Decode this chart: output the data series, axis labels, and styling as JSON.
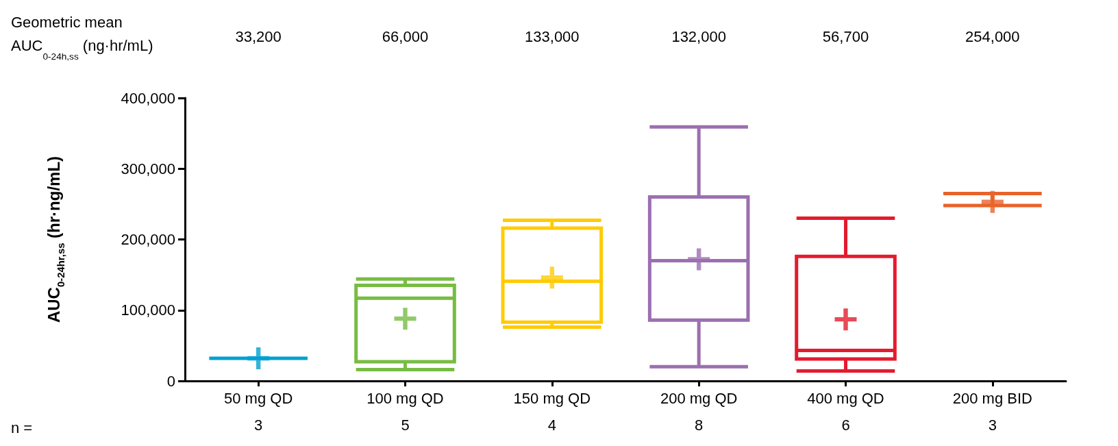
{
  "chart_data": {
    "type": "box",
    "ylabel": "AUC$_{0-24hr,ss}$ (hr·ng/mL)",
    "categories": [
      "50 mg QD",
      "100 mg QD",
      "150 mg QD",
      "200 mg QD",
      "400 mg QD",
      "200 mg BID"
    ],
    "colors": [
      "#00a0d2",
      "#77bc43",
      "#ffcb05",
      "#9b6fb0",
      "#e31b2e",
      "#e8632a"
    ],
    "boxes": [
      {
        "low": 32000,
        "q1": 32000,
        "median": 32000,
        "q3": 32000,
        "high": 32000,
        "mean": 32000
      },
      {
        "low": 16000,
        "q1": 27000,
        "median": 117000,
        "q3": 135000,
        "high": 144000,
        "mean": 88000
      },
      {
        "low": 76000,
        "q1": 83000,
        "median": 141000,
        "q3": 216000,
        "high": 227000,
        "mean": 146000
      },
      {
        "low": 20000,
        "q1": 86000,
        "median": 170000,
        "q3": 260000,
        "high": 359000,
        "mean": 172000
      },
      {
        "low": 14000,
        "q1": 31000,
        "median": 43000,
        "q3": 176000,
        "high": 230000,
        "mean": 87000
      },
      {
        "low": 248000,
        "q1": 248000,
        "median": 248000,
        "q3": 248000,
        "high": 265000,
        "mean": 253000
      }
    ],
    "ylim": [
      0,
      400000
    ],
    "yticks": [
      {
        "value": 0,
        "label": "0"
      },
      {
        "value": 100000,
        "label": "100,000"
      },
      {
        "value": 200000,
        "label": "200,000"
      },
      {
        "value": 300000,
        "label": "300,000"
      },
      {
        "value": 400000,
        "label": "400,000"
      }
    ],
    "marker": "cross",
    "annotations": [
      "Geometric mean\nAUC$_{0-24h,ss}$ (ng·hr/mL)",
      "33,200",
      "66,000",
      "133,000",
      "132,000",
      "56,700",
      "254,000",
      "n =",
      "3",
      "5",
      "4",
      "8",
      "6",
      "3"
    ]
  }
}
